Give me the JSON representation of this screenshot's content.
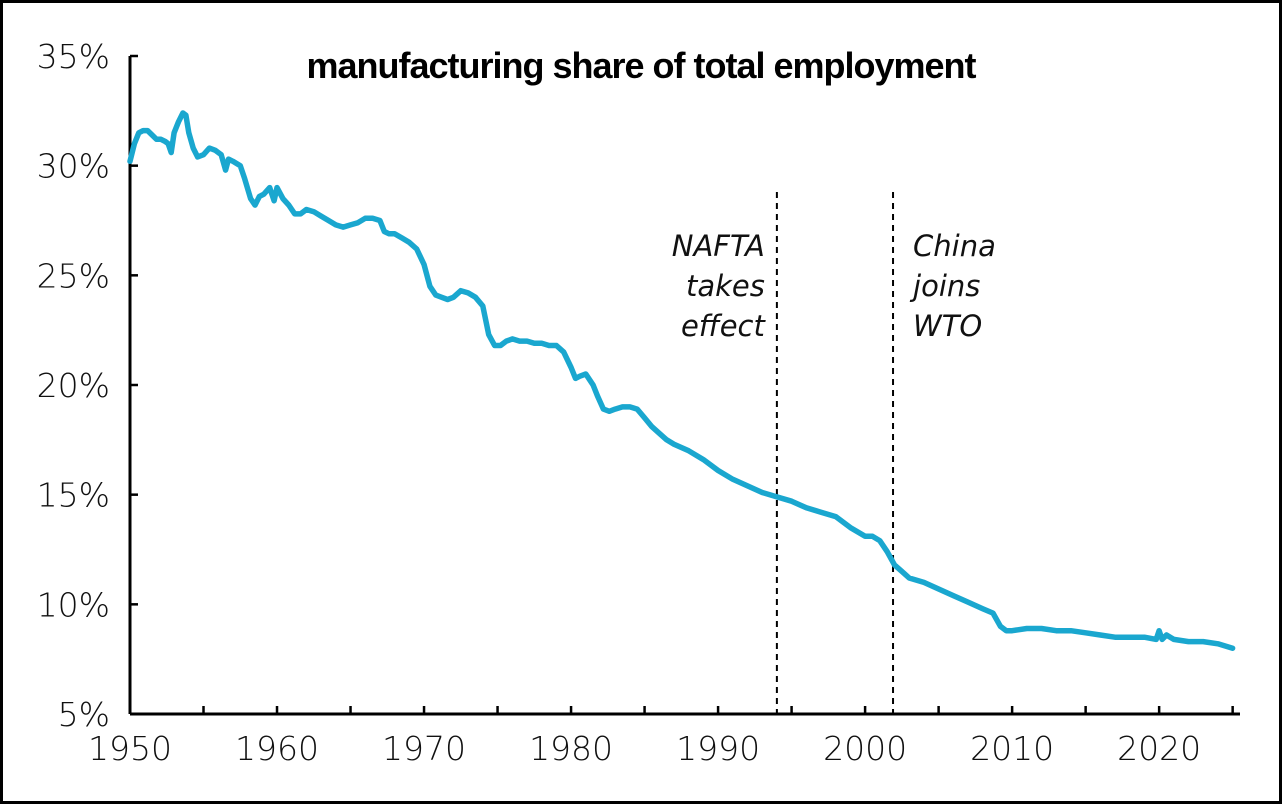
{
  "chart_data": {
    "type": "line",
    "title": "manufacturing share of total employment",
    "xlabel": "",
    "ylabel": "",
    "xlim": [
      1950,
      2025.5
    ],
    "ylim": [
      5,
      35
    ],
    "x_ticks": [
      {
        "value": 1950,
        "label": "1950"
      },
      {
        "value": 1960,
        "label": "1960"
      },
      {
        "value": 1970,
        "label": "1970"
      },
      {
        "value": 1980,
        "label": "1980"
      },
      {
        "value": 1990,
        "label": "1990"
      },
      {
        "value": 2000,
        "label": "2000"
      },
      {
        "value": 2010,
        "label": "2010"
      },
      {
        "value": 2020,
        "label": "2020"
      }
    ],
    "x_minor_ticks": [
      1955,
      1965,
      1975,
      1985,
      1995,
      2005,
      2015,
      2025
    ],
    "y_ticks": [
      {
        "value": 5,
        "label": "5%"
      },
      {
        "value": 10,
        "label": "10%"
      },
      {
        "value": 15,
        "label": "15%"
      },
      {
        "value": 20,
        "label": "20%"
      },
      {
        "value": 25,
        "label": "25%"
      },
      {
        "value": 30,
        "label": "30%"
      },
      {
        "value": 35,
        "label": "35%"
      }
    ],
    "grid": false,
    "series": [
      {
        "color": "#1aa7cf",
        "x": [
          1950.0,
          1950.3,
          1950.6,
          1950.9,
          1951.2,
          1951.5,
          1951.8,
          1952.1,
          1952.4,
          1952.6,
          1952.8,
          1953.0,
          1953.3,
          1953.6,
          1953.8,
          1954.0,
          1954.3,
          1954.6,
          1955.0,
          1955.4,
          1955.8,
          1956.2,
          1956.5,
          1956.7,
          1957.0,
          1957.5,
          1957.8,
          1958.2,
          1958.5,
          1958.8,
          1959.1,
          1959.5,
          1959.8,
          1960.0,
          1960.4,
          1960.8,
          1961.2,
          1961.6,
          1962.0,
          1962.5,
          1963.0,
          1963.5,
          1964.0,
          1964.5,
          1965.0,
          1965.5,
          1966.0,
          1966.5,
          1967.0,
          1967.3,
          1967.6,
          1968.0,
          1968.5,
          1969.0,
          1969.5,
          1970.0,
          1970.4,
          1970.8,
          1971.2,
          1971.6,
          1972.0,
          1972.5,
          1973.0,
          1973.5,
          1974.0,
          1974.4,
          1974.8,
          1975.2,
          1975.6,
          1976.0,
          1976.5,
          1977.0,
          1977.5,
          1978.0,
          1978.5,
          1979.0,
          1979.5,
          1980.0,
          1980.3,
          1980.6,
          1981.0,
          1981.5,
          1981.8,
          1982.2,
          1982.6,
          1983.0,
          1983.5,
          1984.0,
          1984.5,
          1985.0,
          1985.5,
          1986.0,
          1986.5,
          1987.0,
          1988.0,
          1989.0,
          1990.0,
          1991.0,
          1992.0,
          1993.0,
          1994.0,
          1995.0,
          1996.0,
          1997.0,
          1998.0,
          1999.0,
          2000.0,
          2000.5,
          2001.0,
          2001.5,
          2002.0,
          2002.5,
          2003.0,
          2004.0,
          2005.0,
          2006.0,
          2007.0,
          2008.0,
          2008.7,
          2009.2,
          2009.6,
          2010.0,
          2011.0,
          2012.0,
          2013.0,
          2014.0,
          2015.0,
          2016.0,
          2017.0,
          2018.0,
          2019.0,
          2019.8,
          2020.0,
          2020.2,
          2020.5,
          2021.0,
          2022.0,
          2023.0,
          2024.0,
          2025.0
        ],
        "values": [
          30.2,
          31.0,
          31.5,
          31.6,
          31.6,
          31.4,
          31.2,
          31.2,
          31.1,
          31.0,
          30.6,
          31.5,
          32.0,
          32.4,
          32.3,
          31.5,
          30.8,
          30.4,
          30.5,
          30.8,
          30.7,
          30.5,
          29.8,
          30.3,
          30.2,
          30.0,
          29.4,
          28.5,
          28.2,
          28.6,
          28.7,
          29.0,
          28.4,
          29.0,
          28.5,
          28.2,
          27.8,
          27.8,
          28.0,
          27.9,
          27.7,
          27.5,
          27.3,
          27.2,
          27.3,
          27.4,
          27.6,
          27.6,
          27.5,
          27.0,
          26.9,
          26.9,
          26.7,
          26.5,
          26.2,
          25.5,
          24.5,
          24.1,
          24.0,
          23.9,
          24.0,
          24.3,
          24.2,
          24.0,
          23.6,
          22.3,
          21.8,
          21.8,
          22.0,
          22.1,
          22.0,
          22.0,
          21.9,
          21.9,
          21.8,
          21.8,
          21.5,
          20.8,
          20.3,
          20.4,
          20.5,
          20.0,
          19.5,
          18.9,
          18.8,
          18.9,
          19.0,
          19.0,
          18.9,
          18.5,
          18.1,
          17.8,
          17.5,
          17.3,
          17.0,
          16.6,
          16.1,
          15.7,
          15.4,
          15.1,
          14.9,
          14.7,
          14.4,
          14.2,
          14.0,
          13.5,
          13.1,
          13.1,
          12.9,
          12.4,
          11.8,
          11.5,
          11.2,
          11.0,
          10.7,
          10.4,
          10.1,
          9.8,
          9.6,
          9.0,
          8.8,
          8.8,
          8.9,
          8.9,
          8.8,
          8.8,
          8.7,
          8.6,
          8.5,
          8.5,
          8.5,
          8.4,
          8.8,
          8.4,
          8.6,
          8.4,
          8.3,
          8.3,
          8.2,
          8.0
        ]
      }
    ],
    "annotations": [
      {
        "x": 1994.0,
        "lines": [
          "NAFTA",
          "takes",
          "effect"
        ],
        "side": "left"
      },
      {
        "x": 2001.9,
        "lines": [
          "China",
          "joins",
          "WTO"
        ],
        "side": "right"
      }
    ]
  }
}
